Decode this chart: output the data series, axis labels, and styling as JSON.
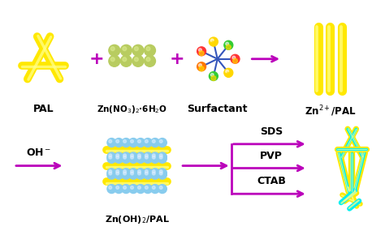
{
  "yellow": "#FFE800",
  "yellow_dark": "#D4C400",
  "yellow_light": "#FFFF88",
  "cyan": "#00EFEF",
  "cyan_dark": "#00CCCC",
  "magenta": "#BB00BB",
  "green_sphere": "#B8CC60",
  "green_sphere_hi": "#DCEC90",
  "blue_line": "#2244AA",
  "white": "#FFFFFF",
  "black": "#000000",
  "label_pal": "PAL",
  "label_zn": "Zn(NO$_3$)$_2$·6H$_2$O",
  "label_surf": "Surfactant",
  "label_zn2pal": "Zn$^{2+}$/PAL",
  "label_oh": "OH$^-$",
  "label_znoh": "Zn(OH)$_2$/PAL",
  "label_sds": "SDS",
  "label_pvp": "PVP",
  "label_ctab": "CTAB",
  "figw": 4.74,
  "figh": 3.11,
  "dpi": 100
}
